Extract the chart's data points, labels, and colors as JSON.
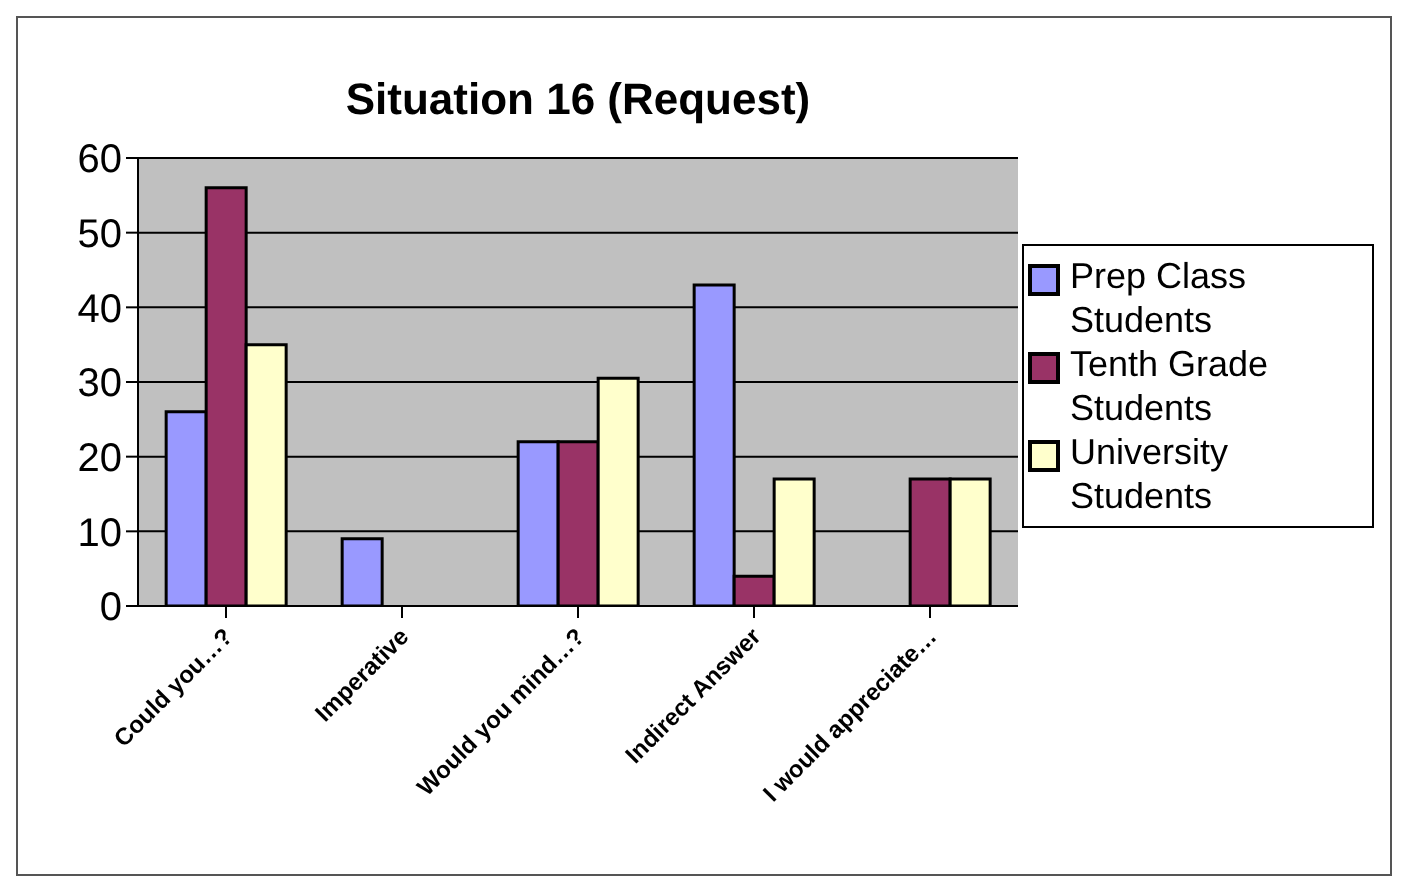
{
  "chart_data": {
    "type": "bar",
    "title": "Situation 16 (Request)",
    "categories": [
      "Could you…?",
      "Imperative",
      "Would you mind…?",
      "Indirect Answer",
      "I would appreciate…"
    ],
    "series": [
      {
        "name": "Prep Class Students",
        "color": "#9999ff",
        "values": [
          26,
          9,
          22,
          43,
          0
        ]
      },
      {
        "name": "Tenth Grade Students",
        "color": "#993366",
        "values": [
          56,
          0,
          22,
          4,
          17
        ]
      },
      {
        "name": "University Students",
        "color": "#ffffcc",
        "values": [
          35,
          0,
          30.5,
          17,
          17
        ]
      }
    ],
    "ylim": [
      0,
      60
    ],
    "yticks": [
      0,
      10,
      20,
      30,
      40,
      50,
      60
    ],
    "grid": "y",
    "legend": "right"
  }
}
